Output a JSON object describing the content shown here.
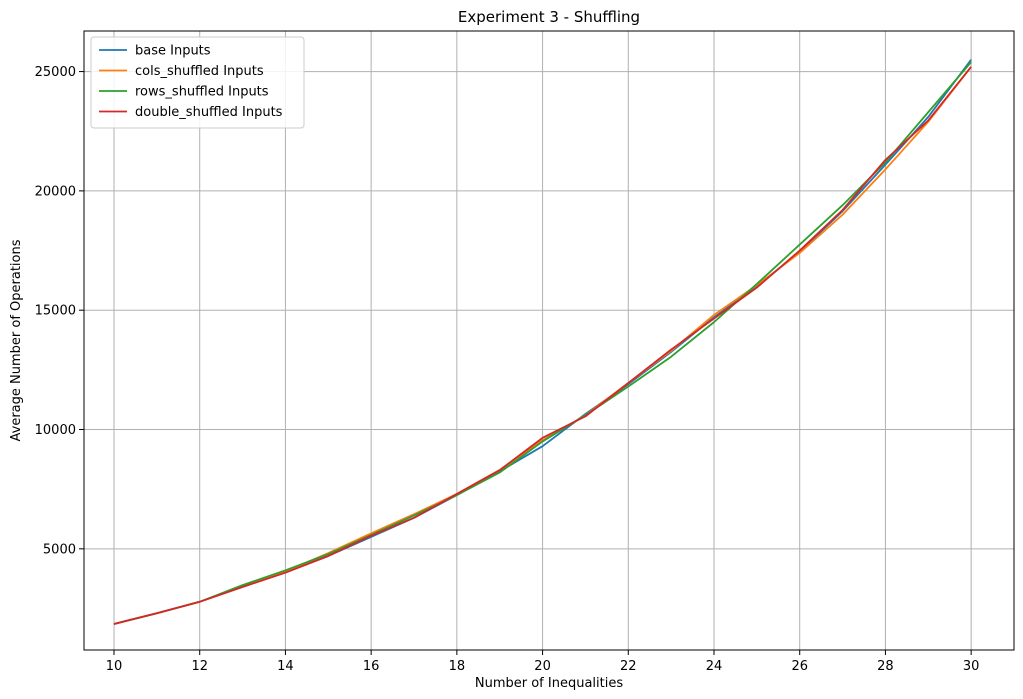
{
  "chart_data": {
    "type": "line",
    "title": "Experiment 3 - Shuffling",
    "xlabel": "Number of Inequalities",
    "ylabel": "Average Number of Operations",
    "x": [
      10,
      11,
      12,
      13,
      14,
      15,
      16,
      17,
      18,
      19,
      20,
      21,
      22,
      23,
      24,
      25,
      26,
      27,
      28,
      29,
      30
    ],
    "xticks": [
      10,
      12,
      14,
      16,
      18,
      20,
      22,
      24,
      26,
      28,
      30
    ],
    "yticks": [
      5000,
      10000,
      15000,
      20000,
      25000
    ],
    "xlim": [
      9.3,
      31.0
    ],
    "ylim": [
      760,
      26700
    ],
    "grid": true,
    "legend_position": "top-left",
    "series": [
      {
        "name": "base Inputs",
        "color": "#1f77b4",
        "values": [
          1850,
          2300,
          2780,
          3430,
          4030,
          4700,
          5500,
          6300,
          7250,
          8250,
          9300,
          10650,
          11900,
          13250,
          14700,
          16000,
          17450,
          19150,
          21100,
          23100,
          25500
        ]
      },
      {
        "name": "cols_shuffled Inputs",
        "color": "#ff7f0e",
        "values": [
          1850,
          2300,
          2780,
          3450,
          4050,
          4820,
          5650,
          6450,
          7300,
          8300,
          9550,
          10600,
          11950,
          13300,
          14800,
          16050,
          17400,
          19000,
          20900,
          22900,
          25200
        ]
      },
      {
        "name": "rows_shuffled Inputs",
        "color": "#2ca02c",
        "values": [
          1850,
          2300,
          2780,
          3480,
          4100,
          4780,
          5580,
          6400,
          7250,
          8200,
          9500,
          10600,
          11800,
          13050,
          14500,
          16100,
          17750,
          19400,
          21200,
          23300,
          25400
        ]
      },
      {
        "name": "double_shuffled Inputs",
        "color": "#d62728",
        "values": [
          1850,
          2300,
          2780,
          3400,
          4000,
          4700,
          5550,
          6300,
          7300,
          8300,
          9650,
          10550,
          11950,
          13350,
          14650,
          15950,
          17500,
          19200,
          21300,
          22950,
          25200
        ]
      }
    ]
  }
}
